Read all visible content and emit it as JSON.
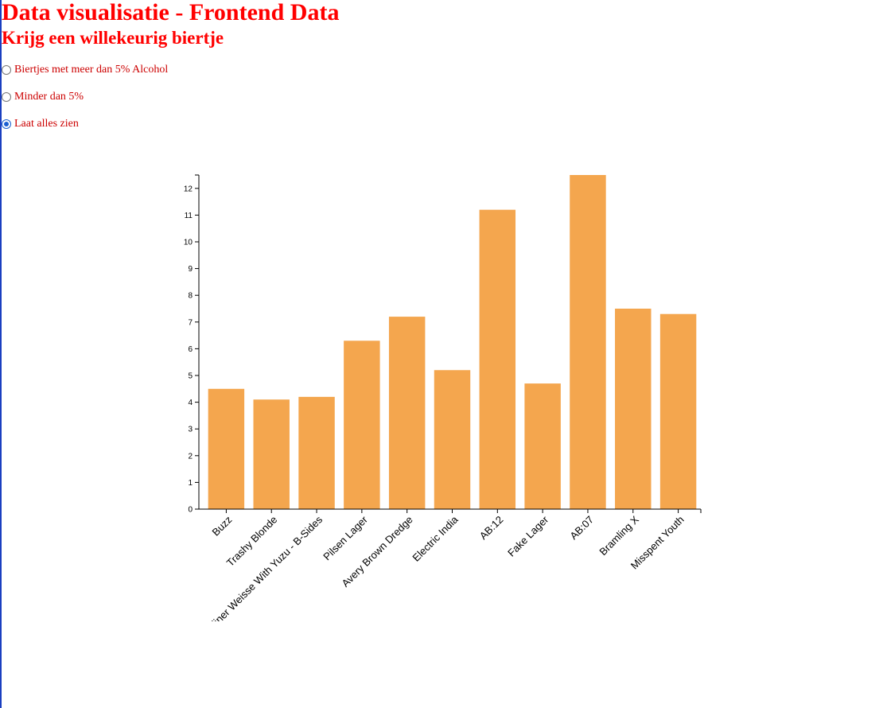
{
  "page": {
    "title": "Data visualisatie - Frontend Data",
    "subtitle": "Krijg een willekeurig biertje"
  },
  "filters": [
    {
      "label": "Biertjes met meer dan 5% Alcohol",
      "checked": false
    },
    {
      "label": "Minder dan 5%",
      "checked": false
    },
    {
      "label": "Laat alles zien",
      "checked": true
    }
  ],
  "colors": {
    "title": "#ff0000",
    "filter_text": "#cc0000",
    "bar": "#f4a64e",
    "radio_selected": "#1a5fd0"
  },
  "chart_data": {
    "type": "bar",
    "categories": [
      "Buzz",
      "Trashy Blonde",
      "Berliner Weisse With Yuzu - B-Sides",
      "Pilsen Lager",
      "Avery Brown Dredge",
      "Electric India",
      "AB:12",
      "Fake Lager",
      "AB:07",
      "Bramling X",
      "Misspent Youth"
    ],
    "values": [
      4.5,
      4.1,
      4.2,
      6.3,
      7.2,
      5.2,
      11.2,
      4.7,
      12.5,
      7.5,
      7.3
    ],
    "yticks": [
      0,
      1,
      2,
      3,
      4,
      5,
      6,
      7,
      8,
      9,
      10,
      11,
      12
    ],
    "ylim": [
      0,
      12.5
    ],
    "title": "",
    "xlabel": "",
    "ylabel": "",
    "grid": false,
    "xtick_rotation": -45
  }
}
